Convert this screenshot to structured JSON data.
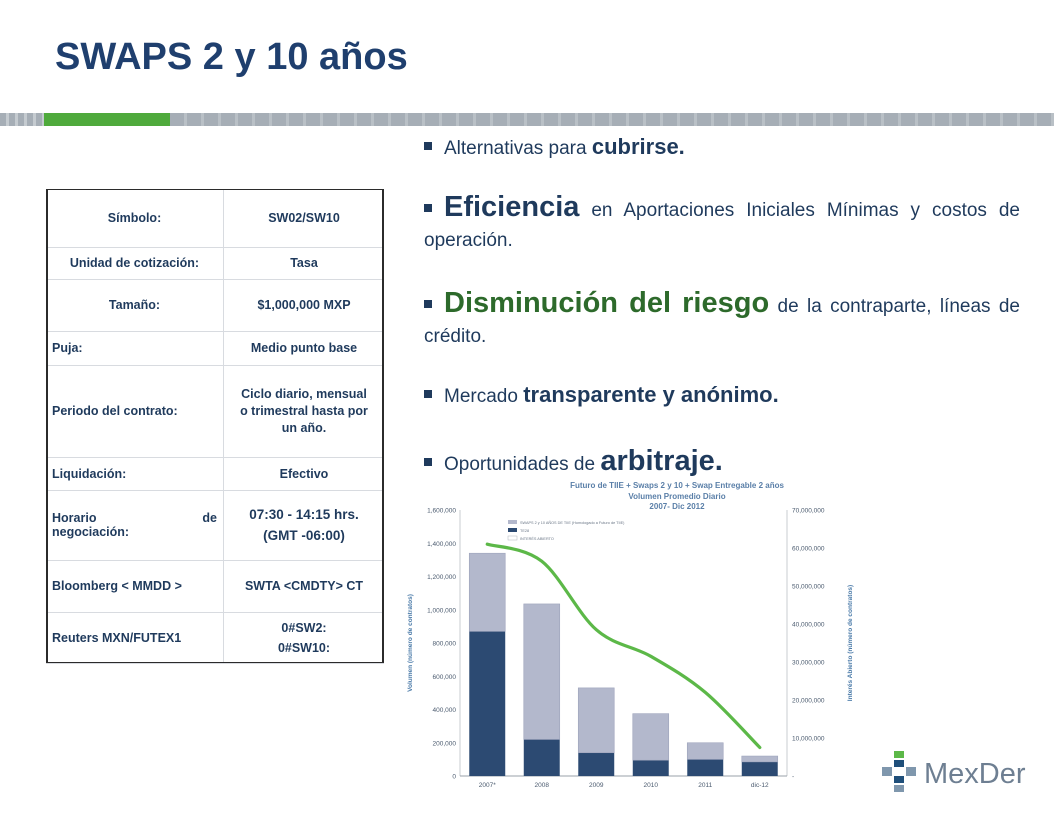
{
  "title": "SWAPS 2 y 10 años",
  "spec_table": [
    {
      "key": "Símbolo:",
      "value": "SW02/SW10"
    },
    {
      "key": "Unidad de cotización:",
      "value": "Tasa"
    },
    {
      "key": "Tamaño:",
      "value": "$1,000,000 MXP"
    },
    {
      "key": "Puja:",
      "value": "Medio punto base"
    },
    {
      "key": "Periodo del contrato:",
      "value": "Ciclo diario, mensual o trimestral hasta por un año."
    },
    {
      "key": "Liquidación:",
      "value": "Efectivo"
    },
    {
      "key_a": "Horario",
      "key_b": "de",
      "key_c": "negociación:",
      "value_a": "07:30 - 14:15 hrs.",
      "value_b": "(GMT -06:00)"
    },
    {
      "key": "Bloomberg < MMDD >",
      "value": "SWTA <CMDTY> CT"
    },
    {
      "key": "Reuters MXN/FUTEX1",
      "value_a": "0#SW2:",
      "value_b": "0#SW10:"
    }
  ],
  "bullets": [
    {
      "pre": "Alternativas para ",
      "em": "cubrirse.",
      "post": ""
    },
    {
      "em": "Eficiencia",
      "post": " en Aportaciones Iniciales Mínimas y costos de operación."
    },
    {
      "em": "Disminución del riesgo",
      "post": " de la contraparte, líneas de crédito."
    },
    {
      "pre": "Mercado ",
      "em": "transparente y anónimo.",
      "post": ""
    },
    {
      "pre": "Oportunidades de ",
      "em": "arbitraje.",
      "post": ""
    }
  ],
  "chart_data": {
    "type": "bar",
    "title": "Futuro de TIIE + Swaps 2 y 10 + Swap Entregable 2 años",
    "subtitle": "Volumen Promedio Diario",
    "subtitle2": "2007- Dic 2012",
    "categories": [
      "2007*",
      "2008",
      "2009",
      "2010",
      "2011",
      "dic-12"
    ],
    "ylabel": "Volumen (número de contratos)",
    "y2label": "Interés Abierto (número de contratos)",
    "ylim": [
      0,
      1600000
    ],
    "y2lim": [
      0,
      70000000
    ],
    "yticks": [
      "0",
      "200,000",
      "400,000",
      "600,000",
      "800,000",
      "1,000,000",
      "1,200,000",
      "1,400,000",
      "1,600,000"
    ],
    "y2ticks": [
      "-",
      "10,000,000",
      "20,000,000",
      "30,000,000",
      "40,000,000",
      "50,000,000",
      "60,000,000",
      "70,000,000"
    ],
    "legend": [
      "SWAPS 2 y 10 AÑOS DE TIIE (Homologado a Futuro de TIIE)",
      "TE28",
      "INTERÉS ABIERTO"
    ],
    "series": [
      {
        "name": "TE28",
        "values": [
          870000,
          220000,
          140000,
          95000,
          100000,
          85000
        ],
        "color": "#2c4a72"
      },
      {
        "name": "SWAPS 2 y 10 AÑOS DE TIIE (Homologado a Futuro de TIIE)",
        "values": [
          470000,
          815000,
          390000,
          280000,
          100000,
          35000
        ],
        "color": "#b3b8cc"
      },
      {
        "name": "INTERÉS ABIERTO",
        "values": [
          61000000,
          56500000,
          38500000,
          31500000,
          22000000,
          7500000
        ],
        "color": "#5cb848"
      }
    ]
  },
  "logo": {
    "text": "MexDer"
  }
}
